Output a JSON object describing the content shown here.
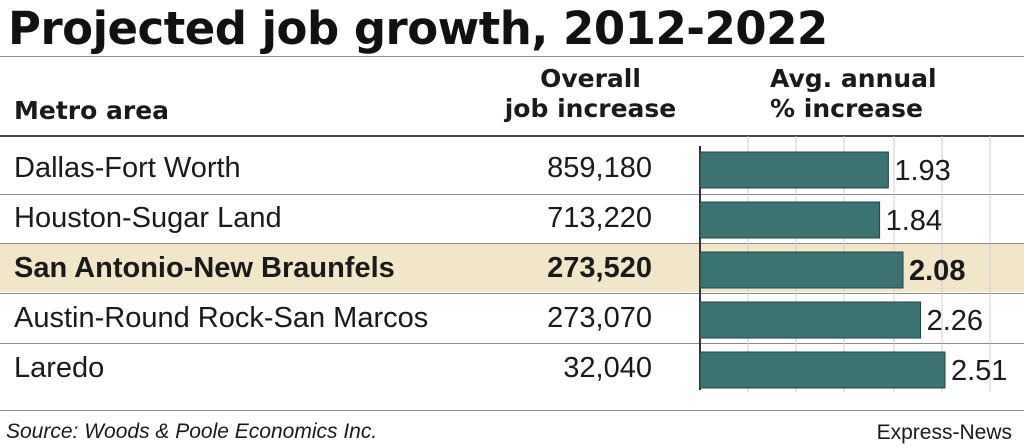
{
  "title": "Projected job growth, 2012-2022",
  "headers": {
    "metro": "Metro area",
    "jobs_line1": "Overall",
    "jobs_line2": "job increase",
    "pct_line1": "Avg. annual",
    "pct_line2": "% increase"
  },
  "rows": [
    {
      "name": "Dallas-Fort Worth",
      "jobs": "859,180",
      "pct": "1.93",
      "highlight": false
    },
    {
      "name": "Houston-Sugar Land",
      "jobs": "713,220",
      "pct": "1.84",
      "highlight": false
    },
    {
      "name": "San Antonio-New Braunfels",
      "jobs": "273,520",
      "pct": "2.08",
      "highlight": true
    },
    {
      "name": "Austin-Round Rock-San Marcos",
      "jobs": "273,070",
      "pct": "2.26",
      "highlight": false
    },
    {
      "name": "Laredo",
      "jobs": "32,040",
      "pct": "2.51",
      "highlight": false
    }
  ],
  "source": "Source: Woods & Poole Economics Inc.",
  "credit": "Express-News",
  "colors": {
    "bar": "#3b7372",
    "highlight": "#f1e6c8"
  },
  "chart_data": {
    "type": "table",
    "title": "Projected job growth, 2012-2022",
    "columns": [
      "Metro area",
      "Overall job increase",
      "Avg. annual % increase"
    ],
    "categories": [
      "Dallas-Fort Worth",
      "Houston-Sugar Land",
      "San Antonio-New Braunfels",
      "Austin-Round Rock-San Marcos",
      "Laredo"
    ],
    "series": [
      {
        "name": "Overall job increase",
        "values": [
          859180,
          713220,
          273520,
          273070,
          32040
        ]
      },
      {
        "name": "Avg. annual % increase",
        "values": [
          1.93,
          1.84,
          2.08,
          2.26,
          2.51
        ]
      }
    ],
    "bar_series": "Avg. annual % increase",
    "grid": true
  }
}
